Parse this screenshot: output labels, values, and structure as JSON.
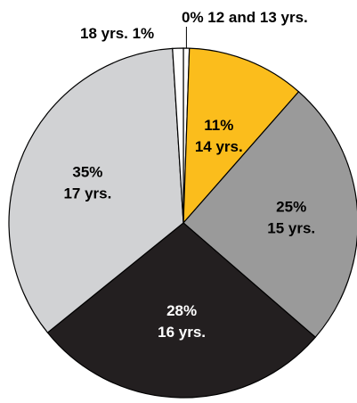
{
  "chart_data": {
    "type": "pie",
    "slices": [
      {
        "label": "12 and 13 yrs.",
        "percent_text": "0%",
        "value": 0,
        "color": "#ffffff"
      },
      {
        "label": "14 yrs.",
        "percent_text": "11%",
        "value": 11,
        "color": "#fbbd1c"
      },
      {
        "label": "15 yrs.",
        "percent_text": "25%",
        "value": 25,
        "color": "#9a9a9a"
      },
      {
        "label": "16 yrs.",
        "percent_text": "28%",
        "value": 28,
        "color": "#231f20"
      },
      {
        "label": "17 yrs.",
        "percent_text": "35%",
        "value": 35,
        "color": "#d1d2d4"
      },
      {
        "label": "18 yrs.",
        "percent_text": "1%",
        "value": 1,
        "color": "#ffffff"
      }
    ],
    "outside_labels": {
      "top_right": "0% 12 and 13 yrs.",
      "top_left": "18 yrs. 1%"
    }
  }
}
